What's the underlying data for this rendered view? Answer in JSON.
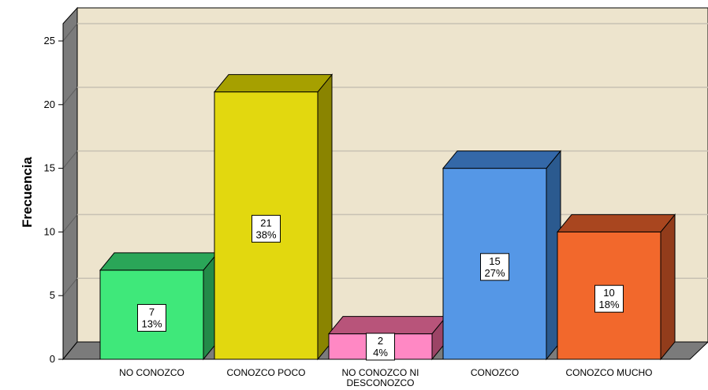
{
  "chart_data": {
    "type": "bar",
    "ylabel": "Frecuencia",
    "xlabel": "",
    "ylim": [
      0,
      25
    ],
    "yticks": [
      "0",
      "5",
      "10",
      "15",
      "20",
      "25"
    ],
    "grid": true,
    "categories": [
      {
        "lines": [
          "NO CONOZCO"
        ]
      },
      {
        "lines": [
          "CONOZCO POCO"
        ]
      },
      {
        "lines": [
          "NO CONOZCO NI",
          "DESCONOZCO"
        ]
      },
      {
        "lines": [
          "CONOZCO"
        ]
      },
      {
        "lines": [
          "CONOZCO MUCHO"
        ]
      }
    ],
    "values": [
      7,
      21,
      2,
      15,
      10
    ],
    "percent_labels": [
      "13%",
      "38%",
      "4%",
      "27%",
      "18%"
    ],
    "count_labels": [
      "7",
      "21",
      "2",
      "15",
      "10"
    ],
    "colors": {
      "front": [
        "#3fe87a",
        "#e2d80f",
        "#ff88c4",
        "#5597e6",
        "#f2682c"
      ],
      "side": [
        "#238a48",
        "#8a8400",
        "#9c4466",
        "#2b5a8f",
        "#923c1b"
      ],
      "top": [
        "#2aa658",
        "#a6a000",
        "#b8547a",
        "#3468a8",
        "#a9461f"
      ],
      "plot_bg": "#ede4cd",
      "wall_side": "#7b7b7b",
      "grid": "#c7c1b3"
    }
  }
}
